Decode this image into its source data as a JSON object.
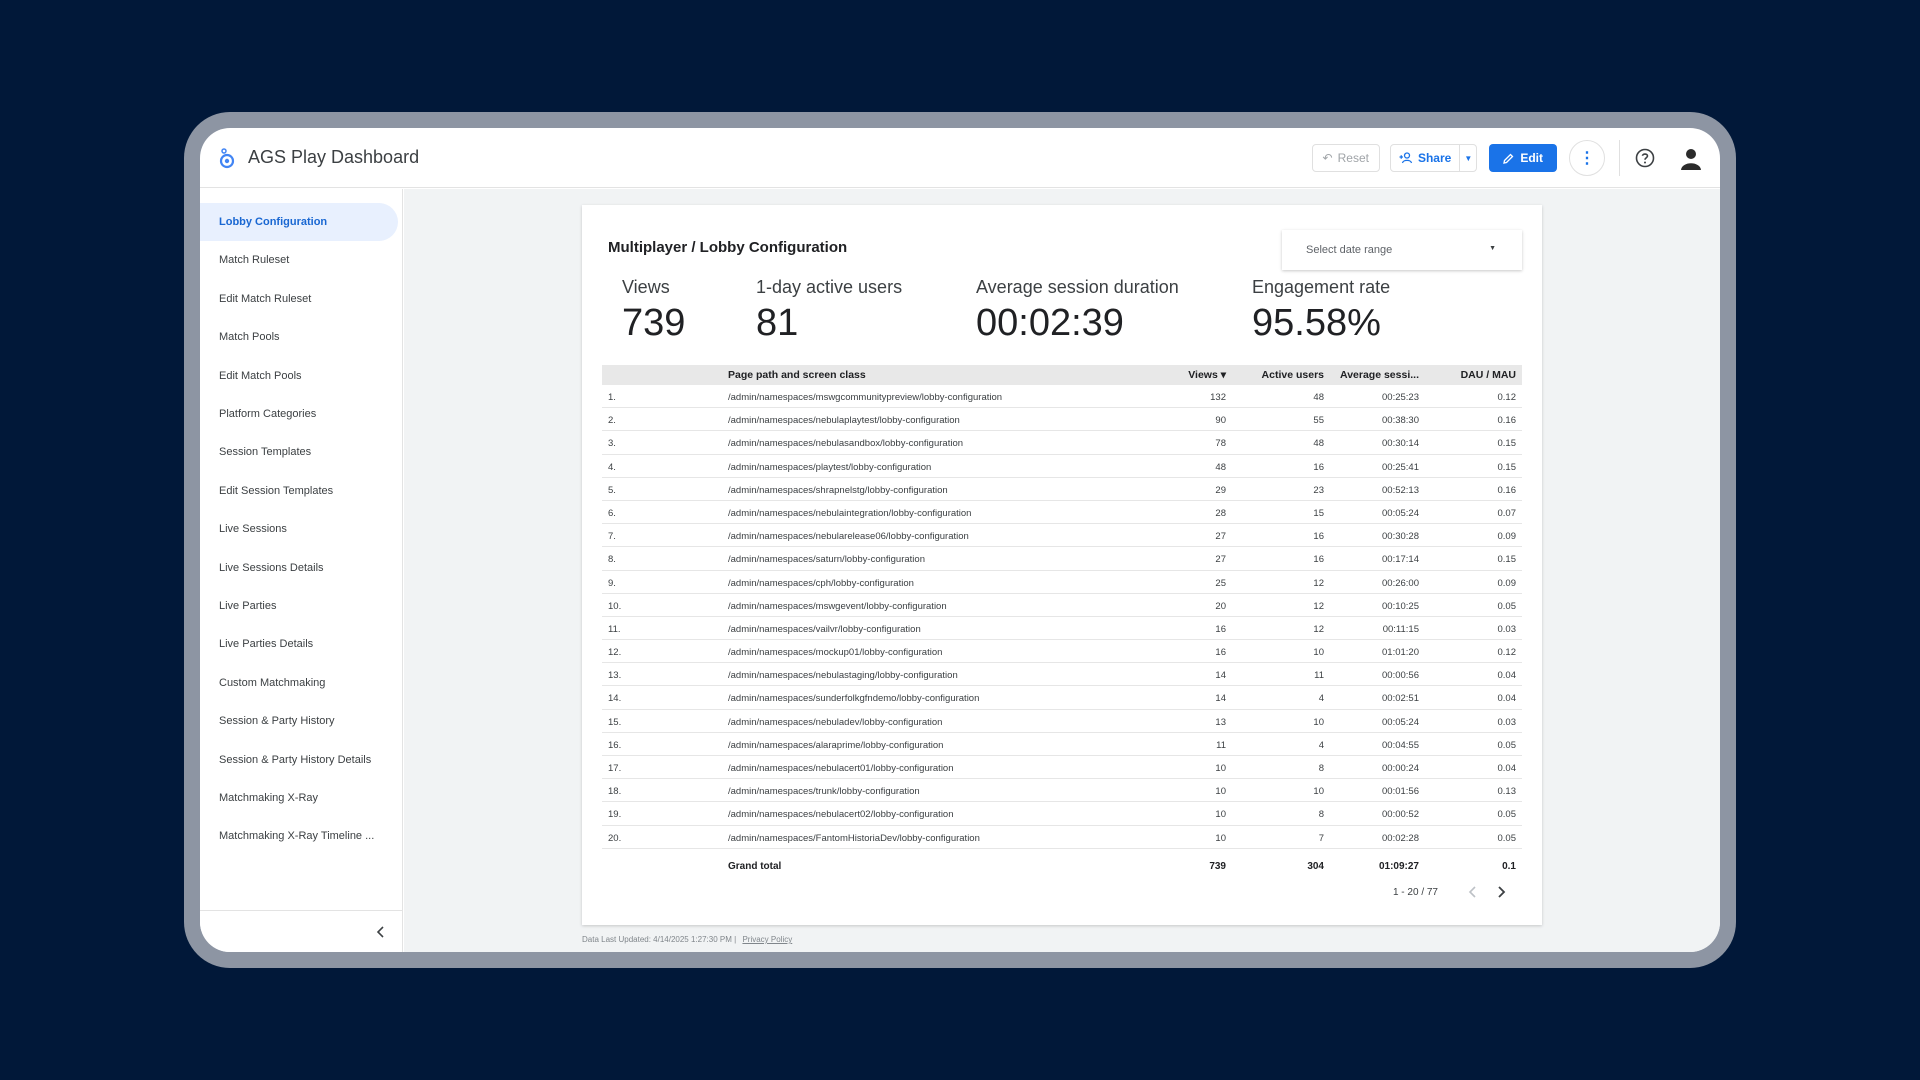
{
  "app": {
    "title": "AGS Play Dashboard"
  },
  "toolbar": {
    "reset_label": "Reset",
    "share_label": "Share",
    "edit_label": "Edit"
  },
  "colors": {
    "accent": "#1a73e8",
    "background": "#011839",
    "active_nav_bg": "#e8f0fe"
  },
  "sidebar": {
    "items": [
      {
        "label": "Lobby Configuration",
        "active": true
      },
      {
        "label": "Match Ruleset"
      },
      {
        "label": "Edit Match Ruleset"
      },
      {
        "label": "Match Pools"
      },
      {
        "label": "Edit Match Pools"
      },
      {
        "label": "Platform Categories"
      },
      {
        "label": "Session Templates"
      },
      {
        "label": "Edit Session Templates"
      },
      {
        "label": "Live Sessions"
      },
      {
        "label": "Live Sessions Details"
      },
      {
        "label": "Live Parties"
      },
      {
        "label": "Live Parties Details"
      },
      {
        "label": "Custom Matchmaking"
      },
      {
        "label": "Session & Party History"
      },
      {
        "label": "Session & Party History Details"
      },
      {
        "label": "Matchmaking X-Ray"
      },
      {
        "label": "Matchmaking X-Ray Timeline ..."
      }
    ]
  },
  "page": {
    "title": "Multiplayer / Lobby Configuration",
    "date_range_placeholder": "Select date range"
  },
  "metrics": [
    {
      "label": "Views",
      "value": "739"
    },
    {
      "label": "1-day active users",
      "value": "81"
    },
    {
      "label": "Average session duration",
      "value": "00:02:39"
    },
    {
      "label": "Engagement rate",
      "value": "95.58%"
    }
  ],
  "table": {
    "headers": {
      "path": "Page path and screen class",
      "views": "Views ▾",
      "users": "Active users",
      "avg": "Average sessi...",
      "dau": "DAU / MAU"
    },
    "rows": [
      [
        "1.",
        "/admin/namespaces/mswgcommunitypreview/lobby-configuration",
        "132",
        "48",
        "00:25:23",
        "0.12"
      ],
      [
        "2.",
        "/admin/namespaces/nebulaplaytest/lobby-configuration",
        "90",
        "55",
        "00:38:30",
        "0.16"
      ],
      [
        "3.",
        "/admin/namespaces/nebulasandbox/lobby-configuration",
        "78",
        "48",
        "00:30:14",
        "0.15"
      ],
      [
        "4.",
        "/admin/namespaces/playtest/lobby-configuration",
        "48",
        "16",
        "00:25:41",
        "0.15"
      ],
      [
        "5.",
        "/admin/namespaces/shrapnelstg/lobby-configuration",
        "29",
        "23",
        "00:52:13",
        "0.16"
      ],
      [
        "6.",
        "/admin/namespaces/nebulaintegration/lobby-configuration",
        "28",
        "15",
        "00:05:24",
        "0.07"
      ],
      [
        "7.",
        "/admin/namespaces/nebularelease06/lobby-configuration",
        "27",
        "16",
        "00:30:28",
        "0.09"
      ],
      [
        "8.",
        "/admin/namespaces/saturn/lobby-configuration",
        "27",
        "16",
        "00:17:14",
        "0.15"
      ],
      [
        "9.",
        "/admin/namespaces/cph/lobby-configuration",
        "25",
        "12",
        "00:26:00",
        "0.09"
      ],
      [
        "10.",
        "/admin/namespaces/mswgevent/lobby-configuration",
        "20",
        "12",
        "00:10:25",
        "0.05"
      ],
      [
        "11.",
        "/admin/namespaces/vailvr/lobby-configuration",
        "16",
        "12",
        "00:11:15",
        "0.03"
      ],
      [
        "12.",
        "/admin/namespaces/mockup01/lobby-configuration",
        "16",
        "10",
        "01:01:20",
        "0.12"
      ],
      [
        "13.",
        "/admin/namespaces/nebulastaging/lobby-configuration",
        "14",
        "11",
        "00:00:56",
        "0.04"
      ],
      [
        "14.",
        "/admin/namespaces/sunderfolkgfndemo/lobby-configuration",
        "14",
        "4",
        "00:02:51",
        "0.04"
      ],
      [
        "15.",
        "/admin/namespaces/nebuladev/lobby-configuration",
        "13",
        "10",
        "00:05:24",
        "0.03"
      ],
      [
        "16.",
        "/admin/namespaces/alaraprime/lobby-configuration",
        "11",
        "4",
        "00:04:55",
        "0.05"
      ],
      [
        "17.",
        "/admin/namespaces/nebulacert01/lobby-configuration",
        "10",
        "8",
        "00:00:24",
        "0.04"
      ],
      [
        "18.",
        "/admin/namespaces/trunk/lobby-configuration",
        "10",
        "10",
        "00:01:56",
        "0.13"
      ],
      [
        "19.",
        "/admin/namespaces/nebulacert02/lobby-configuration",
        "10",
        "8",
        "00:00:52",
        "0.05"
      ],
      [
        "20.",
        "/admin/namespaces/FantomHistoriaDev/lobby-configuration",
        "10",
        "7",
        "00:02:28",
        "0.05"
      ]
    ],
    "total": {
      "label": "Grand total",
      "views": "739",
      "users": "304",
      "avg": "01:09:27",
      "dau": "0.1"
    },
    "pagination": "1 - 20 / 77"
  },
  "footer": {
    "updated": "Data Last Updated: 4/14/2025 1:27:30 PM",
    "privacy": "Privacy Policy"
  }
}
